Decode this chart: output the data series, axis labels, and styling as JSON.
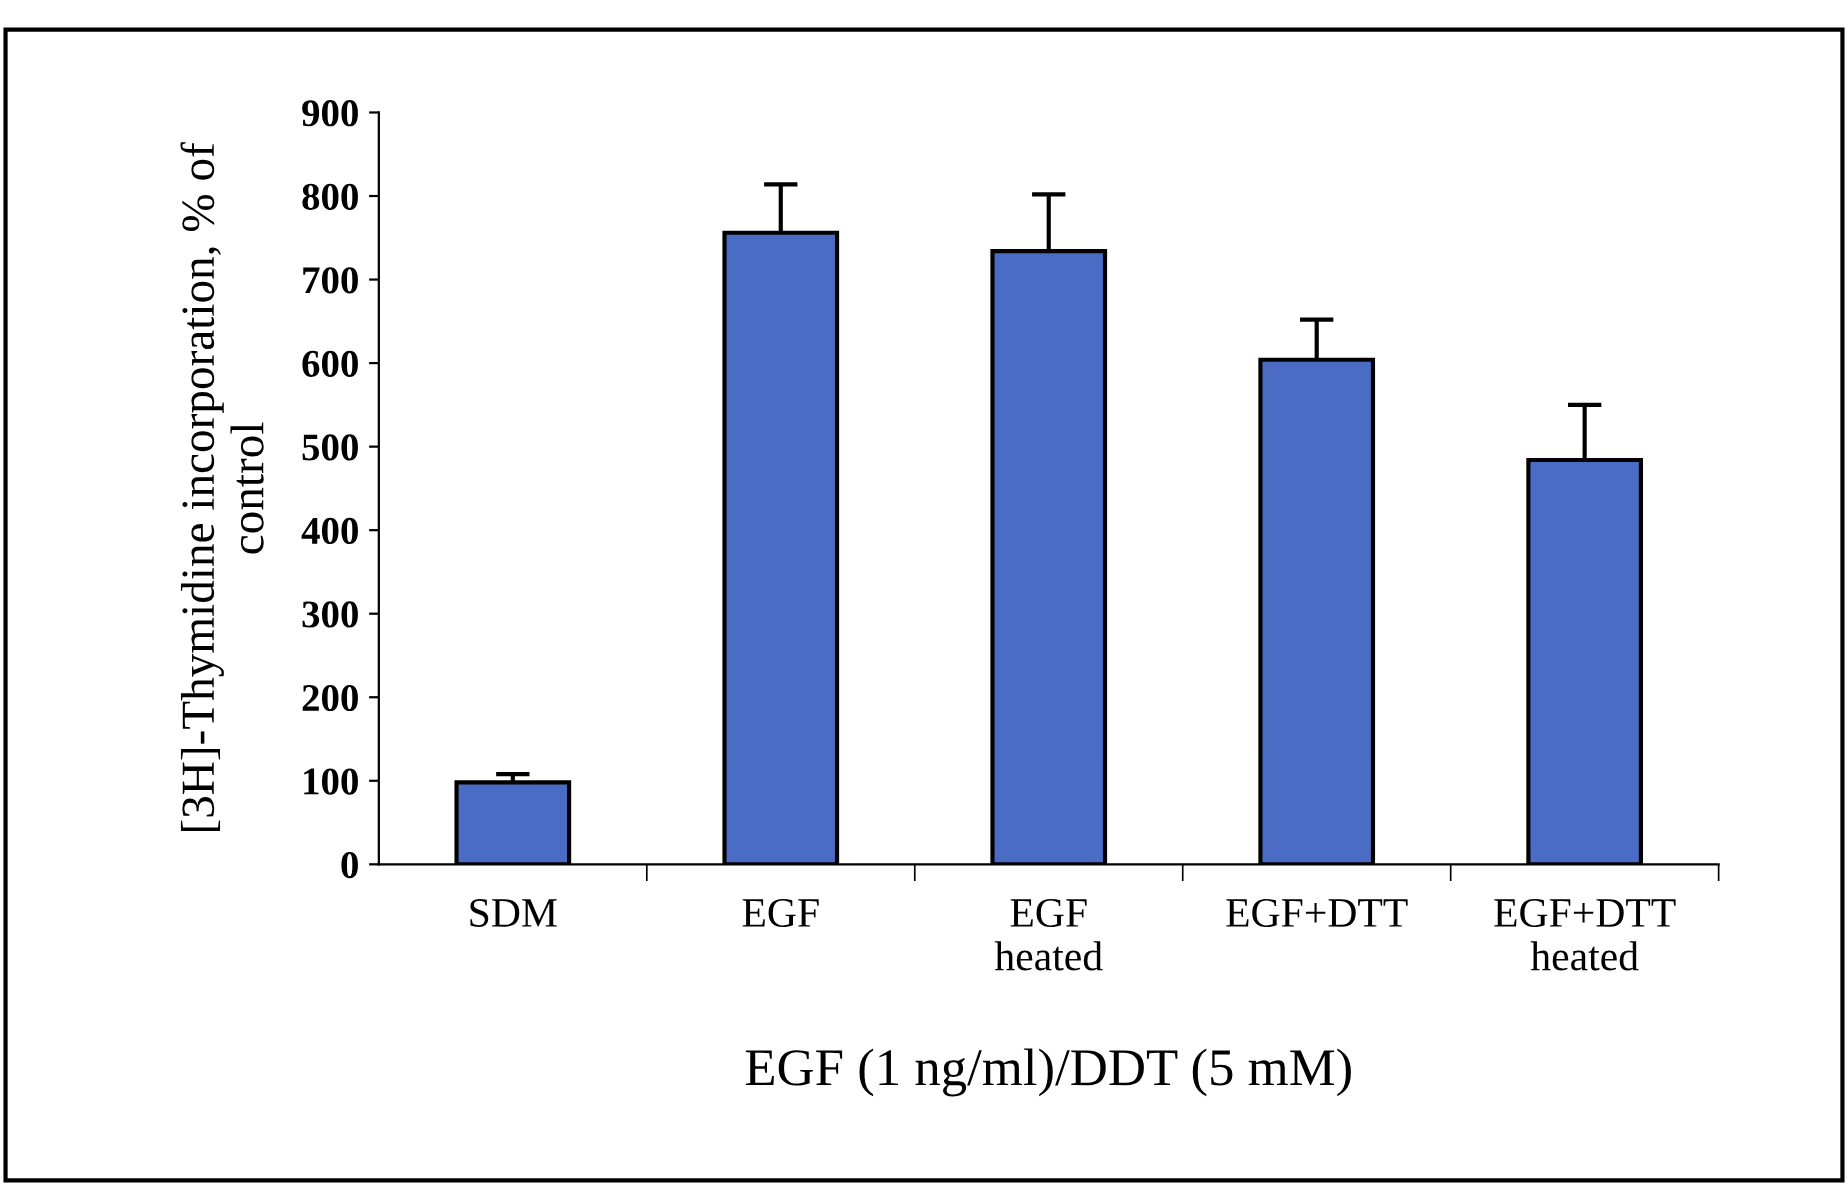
{
  "chart_data": {
    "type": "bar",
    "xlabel": "EGF (1 ng/ml)/DDT (5 mM)",
    "ylabel": "[3H]-Thymidine incorporation, % of\ncontrol",
    "categories": [
      "SDM",
      "EGF",
      "EGF\nheated",
      "EGF+DTT",
      "EGF+DTT\nheated"
    ],
    "values": [
      98,
      756,
      734,
      604,
      484
    ],
    "errors": [
      10,
      58,
      68,
      48,
      66
    ],
    "color": "#4a6cc4",
    "ylim": [
      0,
      900
    ],
    "yticks": [
      0,
      100,
      200,
      300,
      400,
      500,
      600,
      700,
      800,
      900
    ],
    "grid": false,
    "legend": false
  }
}
